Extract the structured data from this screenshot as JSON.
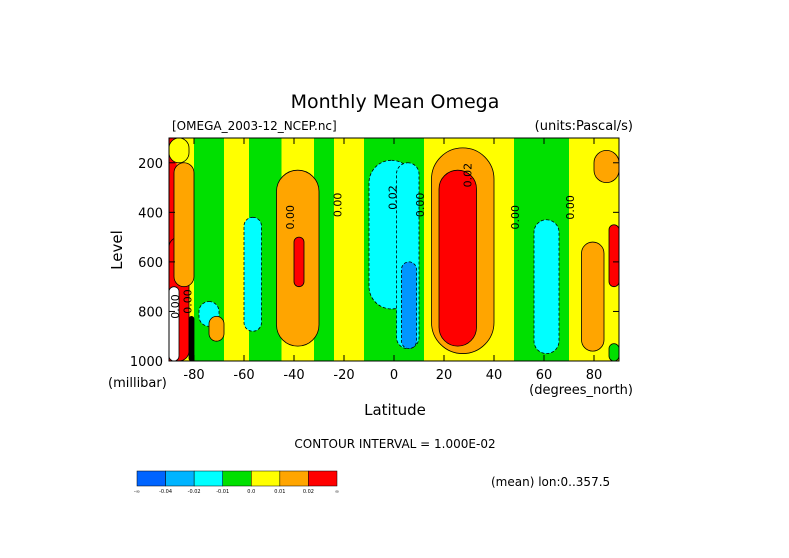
{
  "chart_data": {
    "type": "heatmap",
    "title": "Monthly Mean Omega",
    "file_label": "[OMEGA_2003-12_NCEP.nc]",
    "units_label": "(units:Pascal/s)",
    "xlabel": "Latitude",
    "x_units": "(degrees_north)",
    "ylabel": "Level",
    "y_units": "(millibar)",
    "xlim": [
      -90,
      90
    ],
    "ylim": [
      1000,
      100
    ],
    "x_ticks": [
      -80,
      -60,
      -40,
      -20,
      0,
      20,
      40,
      60,
      80
    ],
    "y_ticks": [
      200,
      400,
      600,
      800,
      1000
    ],
    "contour_interval": "CONTOUR INTERVAL = 1.000E-02",
    "mean_label": "(mean) lon:0..357.5",
    "contour_labels": [
      {
        "text": "0.00",
        "lat": -40,
        "lev": 420
      },
      {
        "text": "0.00",
        "lat": -21,
        "lev": 370
      },
      {
        "text": "0.02",
        "lat": 1,
        "lev": 340
      },
      {
        "text": "0.00",
        "lat": 12,
        "lev": 370
      },
      {
        "text": "0.02",
        "lat": 31,
        "lev": 250
      },
      {
        "text": "0.00",
        "lat": 50,
        "lev": 420
      },
      {
        "text": "0.00",
        "lat": 72,
        "lev": 380
      },
      {
        "text": "0.00",
        "lat": -86,
        "lev": 780
      },
      {
        "text": "0.00",
        "lat": -81,
        "lev": 760
      }
    ],
    "columns": [
      {
        "lat0": -90,
        "lat1": -87,
        "color": "#ff0000"
      },
      {
        "lat0": -87,
        "lat1": -84,
        "color": "#ffa500"
      },
      {
        "lat0": -84,
        "lat1": -80,
        "color": "#ffff00"
      },
      {
        "lat0": -80,
        "lat1": -68,
        "color": "#00e000"
      },
      {
        "lat0": -68,
        "lat1": -58,
        "color": "#ffff00"
      },
      {
        "lat0": -58,
        "lat1": -45,
        "color": "#00e000"
      },
      {
        "lat0": -45,
        "lat1": -32,
        "color": "#ffff00"
      },
      {
        "lat0": -32,
        "lat1": -24,
        "color": "#00e000"
      },
      {
        "lat0": -24,
        "lat1": -12,
        "color": "#ffff00"
      },
      {
        "lat0": -12,
        "lat1": 12,
        "color": "#00e000"
      },
      {
        "lat0": 12,
        "lat1": 48,
        "color": "#ffff00"
      },
      {
        "lat0": 48,
        "lat1": 70,
        "color": "#00e000"
      },
      {
        "lat0": 70,
        "lat1": 90,
        "color": "#ffff00"
      }
    ],
    "blobs": [
      {
        "lat0": -90,
        "lat1": -82,
        "lev0": 500,
        "lev1": 1000,
        "color": "#ff0000"
      },
      {
        "lat0": -82,
        "lat1": -80,
        "lev0": 820,
        "lev1": 1000,
        "color": "#000000"
      },
      {
        "lat0": -90,
        "lat1": -86,
        "lev0": 700,
        "lev1": 1000,
        "color": "#ffffff"
      },
      {
        "lat0": -90,
        "lat1": -82,
        "lev0": 100,
        "lev1": 200,
        "color": "#ffff00"
      },
      {
        "lat0": -88,
        "lat1": -80,
        "lev0": 200,
        "lev1": 700,
        "color": "#ffa500"
      },
      {
        "lat0": -78,
        "lat1": -70,
        "lev0": 760,
        "lev1": 860,
        "color": "#00ffff"
      },
      {
        "lat0": -74,
        "lat1": -68,
        "lev0": 820,
        "lev1": 920,
        "color": "#ffa500"
      },
      {
        "lat0": -60,
        "lat1": -53,
        "lev0": 420,
        "lev1": 880,
        "color": "#00ffff"
      },
      {
        "lat0": -47,
        "lat1": -30,
        "lev0": 230,
        "lev1": 940,
        "color": "#ffa500"
      },
      {
        "lat0": -40,
        "lat1": -36,
        "lev0": 500,
        "lev1": 700,
        "color": "#ff0000"
      },
      {
        "lat0": -10,
        "lat1": 8,
        "lev0": 190,
        "lev1": 790,
        "color": "#00ffff"
      },
      {
        "lat0": 1,
        "lat1": 10,
        "lev0": 200,
        "lev1": 950,
        "color": "#00ffff"
      },
      {
        "lat0": 3,
        "lat1": 9,
        "lev0": 600,
        "lev1": 950,
        "color": "#0096ff"
      },
      {
        "lat0": 15,
        "lat1": 40,
        "lev0": 140,
        "lev1": 970,
        "color": "#ffa500"
      },
      {
        "lat0": 18,
        "lat1": 33,
        "lev0": 230,
        "lev1": 940,
        "color": "#ff0000"
      },
      {
        "lat0": 56,
        "lat1": 66,
        "lev0": 430,
        "lev1": 970,
        "color": "#00ffff"
      },
      {
        "lat0": 75,
        "lat1": 84,
        "lev0": 520,
        "lev1": 960,
        "color": "#ffa500"
      },
      {
        "lat0": 80,
        "lat1": 90,
        "lev0": 150,
        "lev1": 280,
        "color": "#ffa500"
      },
      {
        "lat0": 86,
        "lat1": 90,
        "lev0": 450,
        "lev1": 700,
        "color": "#ff0000"
      },
      {
        "lat0": 86,
        "lat1": 90,
        "lev0": 930,
        "lev1": 1000,
        "color": "#00e000"
      }
    ],
    "colorbar": {
      "colors": [
        "#0064ff",
        "#00b4ff",
        "#00ffff",
        "#00e000",
        "#ffff00",
        "#ffa500",
        "#ff0000"
      ],
      "labels": [
        "-∞",
        "-0.04",
        "-0.02",
        "-0.01",
        "0.0",
        "0.01",
        "0.02",
        "∞"
      ]
    }
  }
}
